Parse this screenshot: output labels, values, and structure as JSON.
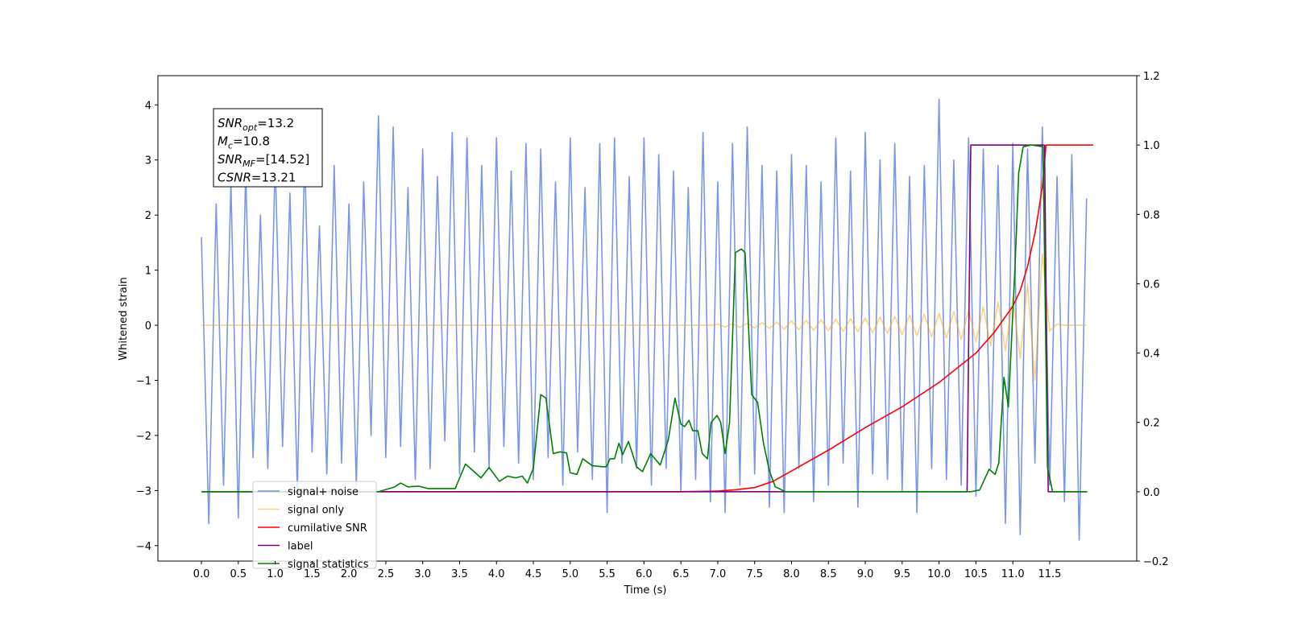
{
  "chart_data": {
    "type": "line",
    "xlabel": "Time (s)",
    "ylabel": "Whitened strain",
    "xlim": [
      -0.59,
      12.68
    ],
    "ylim": [
      -4.28,
      4.53
    ],
    "y2lim": [
      -0.2,
      1.2
    ],
    "grid": false,
    "legend_loc": "lower left",
    "xticks": [
      {
        "value": 0,
        "label": "0.0"
      },
      0.5,
      {
        "value": 1,
        "label": "1.0"
      },
      1.5,
      {
        "value": 2,
        "label": "2.0"
      },
      2.5,
      {
        "value": 3,
        "label": "3.0"
      },
      3.5,
      {
        "value": 4,
        "label": "4.0"
      },
      4.5,
      {
        "value": 5,
        "label": "5.0"
      },
      5.5,
      {
        "value": 6,
        "label": "6.0"
      },
      6.5,
      {
        "value": 7,
        "label": "7.0"
      },
      7.5,
      {
        "value": 8,
        "label": "8.0"
      },
      8.5,
      {
        "value": 9,
        "label": "9.0"
      },
      9.5,
      {
        "value": 10,
        "label": "10.0"
      },
      10.5,
      {
        "value": 11,
        "label": "11.0"
      },
      11.5
    ],
    "yticks": [
      {
        "value": -4,
        "label": "−4"
      },
      {
        "value": -3,
        "label": "−3"
      },
      {
        "value": -2,
        "label": "−2"
      },
      {
        "value": -1,
        "label": "−1"
      },
      0,
      1,
      2,
      3,
      4
    ],
    "y2ticks": [
      {
        "value": -0.2,
        "label": "−0.2"
      },
      {
        "value": 0,
        "label": "0.0"
      },
      0.2,
      0.4,
      0.6,
      0.8,
      {
        "value": 1,
        "label": "1.0"
      },
      1.2
    ],
    "annotation": [
      {
        "main": "SNR",
        "sub": "opt",
        "text": "=13.2"
      },
      {
        "main": "M",
        "sub": "c",
        "text": "=10.8"
      },
      {
        "main": "SNR",
        "sub": "MF",
        "text": "=[14.52]"
      },
      {
        "main": "CSNR",
        "text": "=13.21"
      }
    ],
    "x": [
      0,
      0.1,
      0.2,
      0.3,
      0.4,
      0.5,
      0.6,
      0.7,
      0.8,
      0.9,
      1.0,
      1.1,
      1.2,
      1.3,
      1.4,
      1.5,
      1.6,
      1.7,
      1.8,
      1.9,
      2.0,
      2.1,
      2.2,
      2.3,
      2.4,
      2.5,
      2.6,
      2.7,
      2.8,
      2.9,
      3.0,
      3.1,
      3.2,
      3.3,
      3.4,
      3.5,
      3.6,
      3.7,
      3.8,
      3.9,
      4.0,
      4.1,
      4.2,
      4.3,
      4.4,
      4.5,
      4.6,
      4.7,
      4.8,
      4.9,
      5.0,
      5.1,
      5.2,
      5.3,
      5.4,
      5.5,
      5.6,
      5.7,
      5.8,
      5.9,
      6.0,
      6.1,
      6.2,
      6.3,
      6.4,
      6.5,
      6.6,
      6.7,
      6.8,
      6.9,
      7.0,
      7.1,
      7.2,
      7.3,
      7.4,
      7.5,
      7.6,
      7.7,
      7.8,
      7.9,
      8.0,
      8.1,
      8.2,
      8.3,
      8.4,
      8.5,
      8.6,
      8.7,
      8.8,
      8.9,
      9.0,
      9.1,
      9.2,
      9.3,
      9.4,
      9.5,
      9.6,
      9.7,
      9.8,
      9.9,
      10.0,
      10.1,
      10.2,
      10.3,
      10.4,
      10.5,
      10.6,
      10.7,
      10.8,
      10.9,
      11.0,
      11.1,
      11.2,
      11.3,
      11.4,
      11.5,
      11.6,
      11.7,
      11.8,
      11.9,
      12.0
    ],
    "series": [
      {
        "name": "signal+ noise",
        "color": "#4169e1",
        "alpha": 0.7,
        "values": [
          1.6,
          -3.6,
          2.2,
          -2.9,
          2.6,
          -3.5,
          2.8,
          -2.4,
          2.0,
          -2.6,
          3.0,
          -2.2,
          2.4,
          -3.0,
          3.1,
          -2.3,
          1.8,
          -2.7,
          2.9,
          -2.5,
          2.2,
          -2.9,
          2.6,
          -2.0,
          3.8,
          -2.4,
          3.6,
          -2.2,
          2.5,
          -2.8,
          3.2,
          -2.6,
          2.7,
          -2.1,
          3.5,
          -2.7,
          3.4,
          -2.3,
          2.9,
          -2.6,
          3.4,
          -2.2,
          2.8,
          -2.5,
          3.3,
          -2.8,
          3.2,
          -2.4,
          2.6,
          -2.9,
          3.4,
          -2.3,
          2.5,
          -2.8,
          3.3,
          -3.4,
          3.4,
          -2.5,
          2.7,
          -2.6,
          3.4,
          -2.9,
          3.1,
          -2.6,
          2.8,
          -3.0,
          2.5,
          -2.8,
          3.5,
          -3.2,
          2.6,
          -3.4,
          3.3,
          -2.9,
          3.6,
          -2.7,
          2.9,
          -3.3,
          2.8,
          -3.4,
          3.1,
          -2.6,
          2.9,
          -3.2,
          2.6,
          -2.9,
          3.4,
          -2.5,
          2.8,
          -3.3,
          3.5,
          -2.7,
          3.0,
          -2.8,
          3.3,
          -3.0,
          2.7,
          -3.4,
          2.9,
          -2.6,
          4.1,
          -2.8,
          3.0,
          -2.9,
          3.4,
          -3.1,
          3.2,
          -2.6,
          2.9,
          -3.6,
          3.3,
          -3.8,
          3.2,
          -2.5,
          3.6,
          -2.9,
          2.7,
          -3.2,
          3.1,
          -3.9,
          2.3
        ]
      },
      {
        "name": "signal only",
        "color": "#ffa500",
        "alpha": 0.5,
        "values": [
          0,
          0,
          0,
          0,
          0,
          0,
          0,
          0,
          0,
          0,
          0,
          0,
          0,
          0,
          0,
          0,
          0,
          0,
          0,
          0,
          0,
          0,
          0,
          0,
          0,
          0,
          0,
          0,
          0,
          0,
          0,
          0,
          0,
          0,
          0,
          0,
          0,
          0,
          0,
          0,
          0,
          0,
          0,
          0,
          0,
          0,
          0,
          0,
          0,
          0,
          0,
          0,
          0,
          0,
          0,
          0,
          0,
          0,
          0,
          0,
          0,
          0,
          0,
          0,
          0,
          0,
          0,
          0,
          0,
          0,
          0.02,
          -0.03,
          0.03,
          -0.04,
          0.04,
          -0.05,
          0.05,
          -0.06,
          0.06,
          -0.07,
          0.08,
          -0.08,
          0.09,
          -0.09,
          0.1,
          -0.1,
          0.11,
          -0.11,
          0.12,
          -0.12,
          0.13,
          -0.14,
          0.15,
          -0.15,
          0.16,
          -0.17,
          0.18,
          -0.19,
          0.2,
          -0.21,
          0.22,
          -0.23,
          0.25,
          -0.26,
          0.28,
          -0.3,
          0.33,
          -0.37,
          0.42,
          -0.46,
          0.5,
          -0.6,
          0.75,
          -1.0,
          1.3,
          -0.1,
          0.02,
          0,
          0,
          0,
          0
        ]
      },
      {
        "name": "cumilative SNR",
        "color": "#ff0000",
        "alpha": 1,
        "axis": "y2",
        "x": [
          0,
          6.5,
          7.0,
          7.25,
          7.5,
          7.75,
          8.0,
          8.5,
          9.0,
          9.5,
          10.0,
          10.5,
          10.75,
          11.0,
          11.1,
          11.2,
          11.3,
          11.35,
          11.4,
          11.43,
          11.45,
          12.09
        ],
        "values": [
          0,
          0,
          0.002,
          0.006,
          0.012,
          0.03,
          0.06,
          0.12,
          0.185,
          0.245,
          0.315,
          0.4,
          0.46,
          0.535,
          0.58,
          0.65,
          0.745,
          0.81,
          0.88,
          0.95,
          1.0,
          1.0
        ]
      },
      {
        "name": "label",
        "color": "#800080",
        "alpha": 1,
        "axis": "y2",
        "x": [
          0,
          10.38,
          10.43,
          11.43,
          11.48,
          12.0
        ],
        "values": [
          0,
          0,
          1,
          1,
          0,
          0
        ]
      },
      {
        "name": "signal statistics",
        "color": "#008000",
        "alpha": 1,
        "axis": "y2",
        "x": [
          0,
          2.4,
          2.62,
          2.7,
          2.8,
          2.95,
          3.08,
          3.44,
          3.58,
          3.79,
          3.9,
          4.04,
          4.15,
          4.26,
          4.35,
          4.42,
          4.5,
          4.6,
          4.67,
          4.77,
          4.86,
          4.95,
          5.0,
          5.09,
          5.17,
          5.3,
          5.44,
          5.49,
          5.54,
          5.6,
          5.66,
          5.71,
          5.79,
          5.9,
          5.98,
          6.09,
          6.22,
          6.33,
          6.42,
          6.5,
          6.55,
          6.61,
          6.66,
          6.73,
          6.79,
          6.86,
          6.91,
          6.99,
          7.04,
          7.1,
          7.16,
          7.24,
          7.32,
          7.37,
          7.46,
          7.54,
          7.62,
          7.7,
          7.78,
          7.92,
          10.43,
          10.55,
          10.68,
          10.76,
          10.81,
          10.88,
          10.94,
          11.03,
          11.08,
          11.14,
          11.25,
          11.41,
          11.47,
          11.54,
          12.01
        ],
        "values": [
          0,
          0,
          0.014,
          0.025,
          0.014,
          0.016,
          0.009,
          0.009,
          0.08,
          0.04,
          0.07,
          0.03,
          0.045,
          0.04,
          0.045,
          0.025,
          0.068,
          0.28,
          0.27,
          0.11,
          0.115,
          0.112,
          0.055,
          0.05,
          0.095,
          0.075,
          0.072,
          0.072,
          0.095,
          0.095,
          0.14,
          0.107,
          0.145,
          0.072,
          0.058,
          0.11,
          0.077,
          0.15,
          0.27,
          0.195,
          0.188,
          0.206,
          0.176,
          0.176,
          0.11,
          0.095,
          0.2,
          0.22,
          0.2,
          0.11,
          0.2,
          0.69,
          0.7,
          0.69,
          0.28,
          0.258,
          0.14,
          0.06,
          0.014,
          0,
          0,
          0.005,
          0.065,
          0.05,
          0.083,
          0.33,
          0.245,
          0.65,
          0.92,
          0.995,
          1.0,
          0.995,
          0.07,
          0,
          0
        ]
      }
    ]
  }
}
